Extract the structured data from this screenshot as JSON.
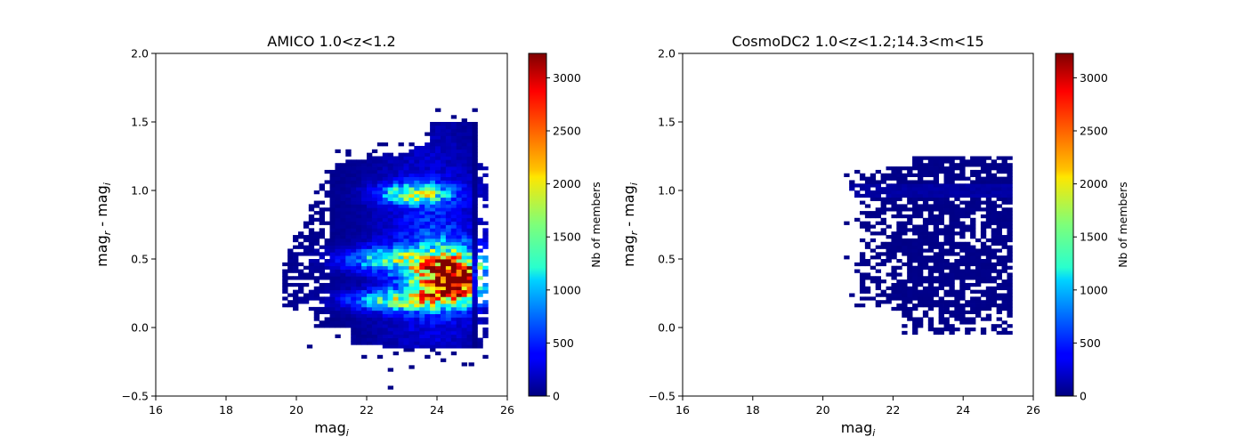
{
  "chart_data": [
    {
      "type": "heatmap",
      "title": "AMICO 1.0<z<1.2",
      "xlabel_base": "mag",
      "xlabel_sub": "i",
      "ylabel_parts": [
        "mag",
        "r",
        " - mag",
        "i"
      ],
      "xlim": [
        16,
        26
      ],
      "ylim": [
        -0.5,
        2.0
      ],
      "xticks": [
        16,
        18,
        20,
        22,
        24,
        26
      ],
      "yticks": [
        -0.5,
        0.0,
        0.5,
        1.0,
        1.5,
        2.0
      ],
      "xtick_labels": [
        "16",
        "18",
        "20",
        "22",
        "24",
        "26"
      ],
      "ytick_labels": [
        "−0.5",
        "0.0",
        "0.5",
        "1.0",
        "1.5",
        "2.0"
      ],
      "colormap": "jet",
      "colorbar": {
        "label": "Nb of members",
        "range": [
          0,
          3230
        ],
        "ticks": [
          0,
          500,
          1000,
          1500,
          2000,
          2500,
          3000
        ],
        "tick_labels": [
          "0",
          "500",
          "1000",
          "1500",
          "2000",
          "2500",
          "3000"
        ]
      }
    },
    {
      "type": "heatmap",
      "title": "CosmoDC2 1.0<z<1.2;14.3<m<15",
      "xlabel_base": "mag",
      "xlabel_sub": "i",
      "ylabel_parts": [
        "mag",
        "r",
        " - mag",
        "i"
      ],
      "xlim": [
        16,
        26
      ],
      "ylim": [
        -0.5,
        2.0
      ],
      "xticks": [
        16,
        18,
        20,
        22,
        24,
        26
      ],
      "yticks": [
        -0.5,
        0.0,
        0.5,
        1.0,
        1.5,
        2.0
      ],
      "xtick_labels": [
        "16",
        "18",
        "20",
        "22",
        "24",
        "26"
      ],
      "ytick_labels": [
        "−0.5",
        "0.0",
        "0.5",
        "1.0",
        "1.5",
        "2.0"
      ],
      "colormap": "jet",
      "colorbar": {
        "label": "Nb of members",
        "range": [
          0,
          3230
        ],
        "ticks": [
          0,
          500,
          1000,
          1500,
          2000,
          2500,
          3000
        ],
        "tick_labels": [
          "0",
          "500",
          "1000",
          "1500",
          "2000",
          "2500",
          "3000"
        ]
      }
    }
  ]
}
